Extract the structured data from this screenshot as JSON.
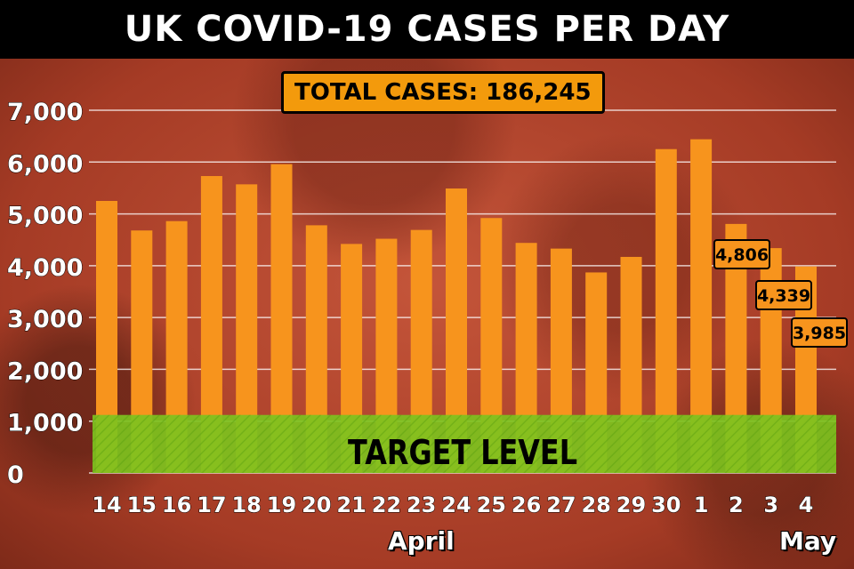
{
  "title": "UK COVID-19 CASES PER DAY",
  "total_label": "TOTAL CASES: 186,245",
  "months": {
    "april": "April",
    "may": "May"
  },
  "colors": {
    "bar": "#f7941d",
    "target": "#7dc21e",
    "title_bg": "#000000"
  },
  "chart_data": {
    "type": "bar",
    "title": "UK COVID-19 CASES PER DAY",
    "categories": [
      "14",
      "15",
      "16",
      "17",
      "18",
      "19",
      "20",
      "21",
      "22",
      "23",
      "24",
      "25",
      "26",
      "27",
      "28",
      "29",
      "30",
      "1",
      "2",
      "3",
      "4"
    ],
    "values": [
      5250,
      4680,
      4860,
      5730,
      5570,
      5960,
      4780,
      4420,
      4520,
      4690,
      5490,
      4920,
      4440,
      4330,
      3870,
      4170,
      6250,
      6440,
      4806,
      4339,
      3985
    ],
    "ylim": [
      0,
      7000
    ],
    "yticks": [
      "0",
      "1,000",
      "2,000",
      "3,000",
      "4,000",
      "5,000",
      "6,000",
      "7,000"
    ],
    "data_labels": [
      {
        "index": 18,
        "text": "4,806"
      },
      {
        "index": 19,
        "text": "4,339"
      },
      {
        "index": 20,
        "text": "3,985"
      }
    ],
    "target": {
      "label": "TARGET LEVEL",
      "value": 1000
    },
    "grid": true
  }
}
